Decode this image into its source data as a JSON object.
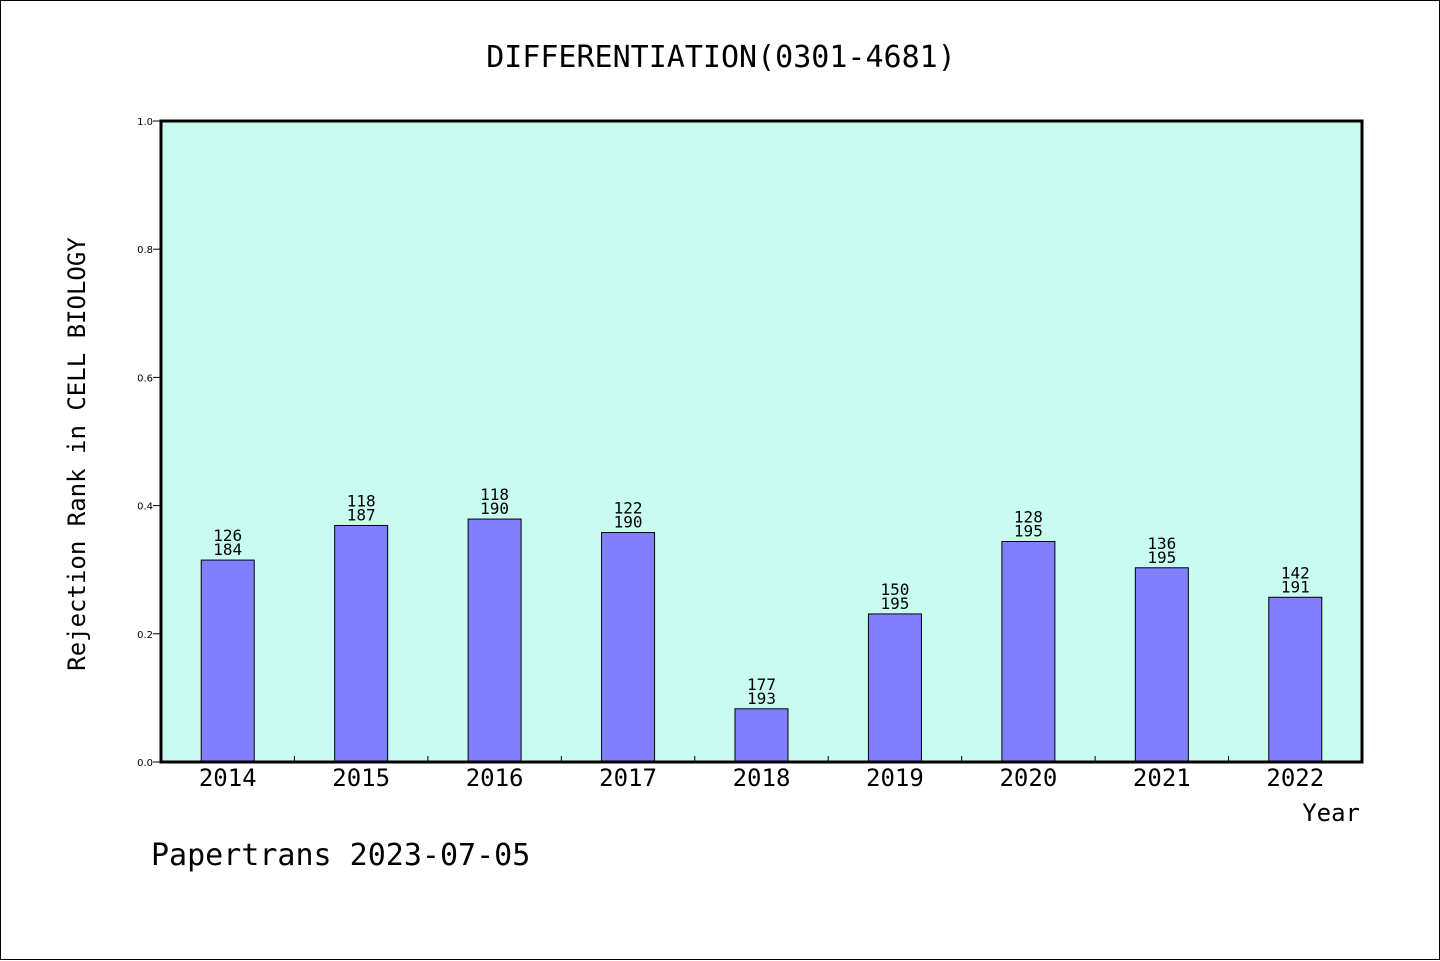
{
  "chart_data": {
    "type": "bar",
    "title": "DIFFERENTIATION(0301-4681)",
    "xlabel": "Year",
    "ylabel": "Rejection Rank in CELL BIOLOGY",
    "ylim": [
      0,
      1.0
    ],
    "yticks": [
      "0.0",
      "0.2",
      "0.4",
      "0.6",
      "0.8",
      "1.0"
    ],
    "categories": [
      "2014",
      "2015",
      "2016",
      "2017",
      "2018",
      "2019",
      "2020",
      "2021",
      "2022"
    ],
    "values": [
      0.315,
      0.369,
      0.379,
      0.358,
      0.083,
      0.231,
      0.344,
      0.303,
      0.257
    ],
    "labels_top": [
      "126",
      "118",
      "118",
      "122",
      "177",
      "150",
      "128",
      "136",
      "142"
    ],
    "labels_bottom": [
      "184",
      "187",
      "190",
      "190",
      "193",
      "195",
      "195",
      "195",
      "191"
    ],
    "grid": false,
    "colors": {
      "plot_background": "#c8fcf0",
      "bar_fill": "#8080ff",
      "bar_stroke": "#000000"
    }
  },
  "footer": "Papertrans 2023-07-05"
}
